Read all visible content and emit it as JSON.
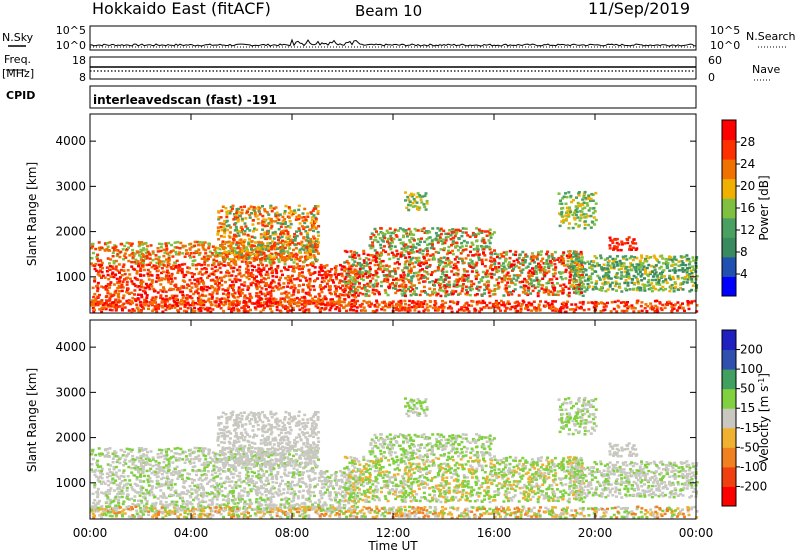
{
  "header": {
    "title": "Hokkaido East (fitACF)",
    "beam": "Beam 10",
    "date": "11/Sep/2019"
  },
  "left_labels": {
    "nsky": "N.Sky",
    "freq_line1": "Freq.",
    "freq_line2": "[MHz]",
    "cpid": "CPID"
  },
  "right_labels": {
    "nsearch": "N.Search",
    "nave": "Nave"
  },
  "scan_mode": "interleavedscan (fast) -191",
  "colors": {
    "power_scale": [
      "#0000ff",
      "#2050b0",
      "#3a8a60",
      "#4aa060",
      "#80c040",
      "#f0b000",
      "#f07000",
      "#ff3000",
      "#ff0000"
    ],
    "velocity_scale": [
      "#2020c0",
      "#3050b0",
      "#40a060",
      "#80d040",
      "#c8c8c0",
      "#f0b030",
      "#f08020",
      "#f04010",
      "#ff0000"
    ]
  },
  "chart_data": [
    {
      "type": "line",
      "name": "noise-panel",
      "y_left_ticks": [
        "10^5",
        "10^0"
      ],
      "y_right_ticks": [
        "10^5",
        "10^0"
      ]
    },
    {
      "type": "line",
      "name": "frequency-panel",
      "y_left_ticks": [
        "18",
        "8"
      ],
      "y_right_ticks": [
        "60",
        "0"
      ]
    },
    {
      "type": "heatmap",
      "name": "power-panel",
      "xlabel": "",
      "ylabel": "Slant Range [km]",
      "x_ticks": [
        "00:00",
        "04:00",
        "08:00",
        "12:00",
        "16:00",
        "20:00",
        "00:00"
      ],
      "y_ticks": [
        1000,
        2000,
        3000,
        4000
      ],
      "ylim": [
        200,
        4600
      ],
      "xlim_hours": [
        0,
        24
      ],
      "colorbar_label": "Power [dB]",
      "colorbar_ticks": [
        4,
        8,
        12,
        16,
        20,
        24,
        28
      ],
      "clim": [
        0,
        32
      ]
    },
    {
      "type": "heatmap",
      "name": "velocity-panel",
      "xlabel": "Time UT",
      "ylabel": "Slant Range [km]",
      "x_ticks": [
        "00:00",
        "04:00",
        "08:00",
        "12:00",
        "16:00",
        "20:00",
        "00:00"
      ],
      "y_ticks": [
        1000,
        2000,
        3000,
        4000
      ],
      "ylim": [
        200,
        4600
      ],
      "xlim_hours": [
        0,
        24
      ],
      "colorbar_label": "Velocity [m s",
      "colorbar_label_sup": "-1",
      "colorbar_label_end": "]",
      "colorbar_ticks": [
        "200",
        "100",
        "50",
        "15",
        "-15",
        "-50",
        "-100",
        "-200"
      ]
    }
  ]
}
